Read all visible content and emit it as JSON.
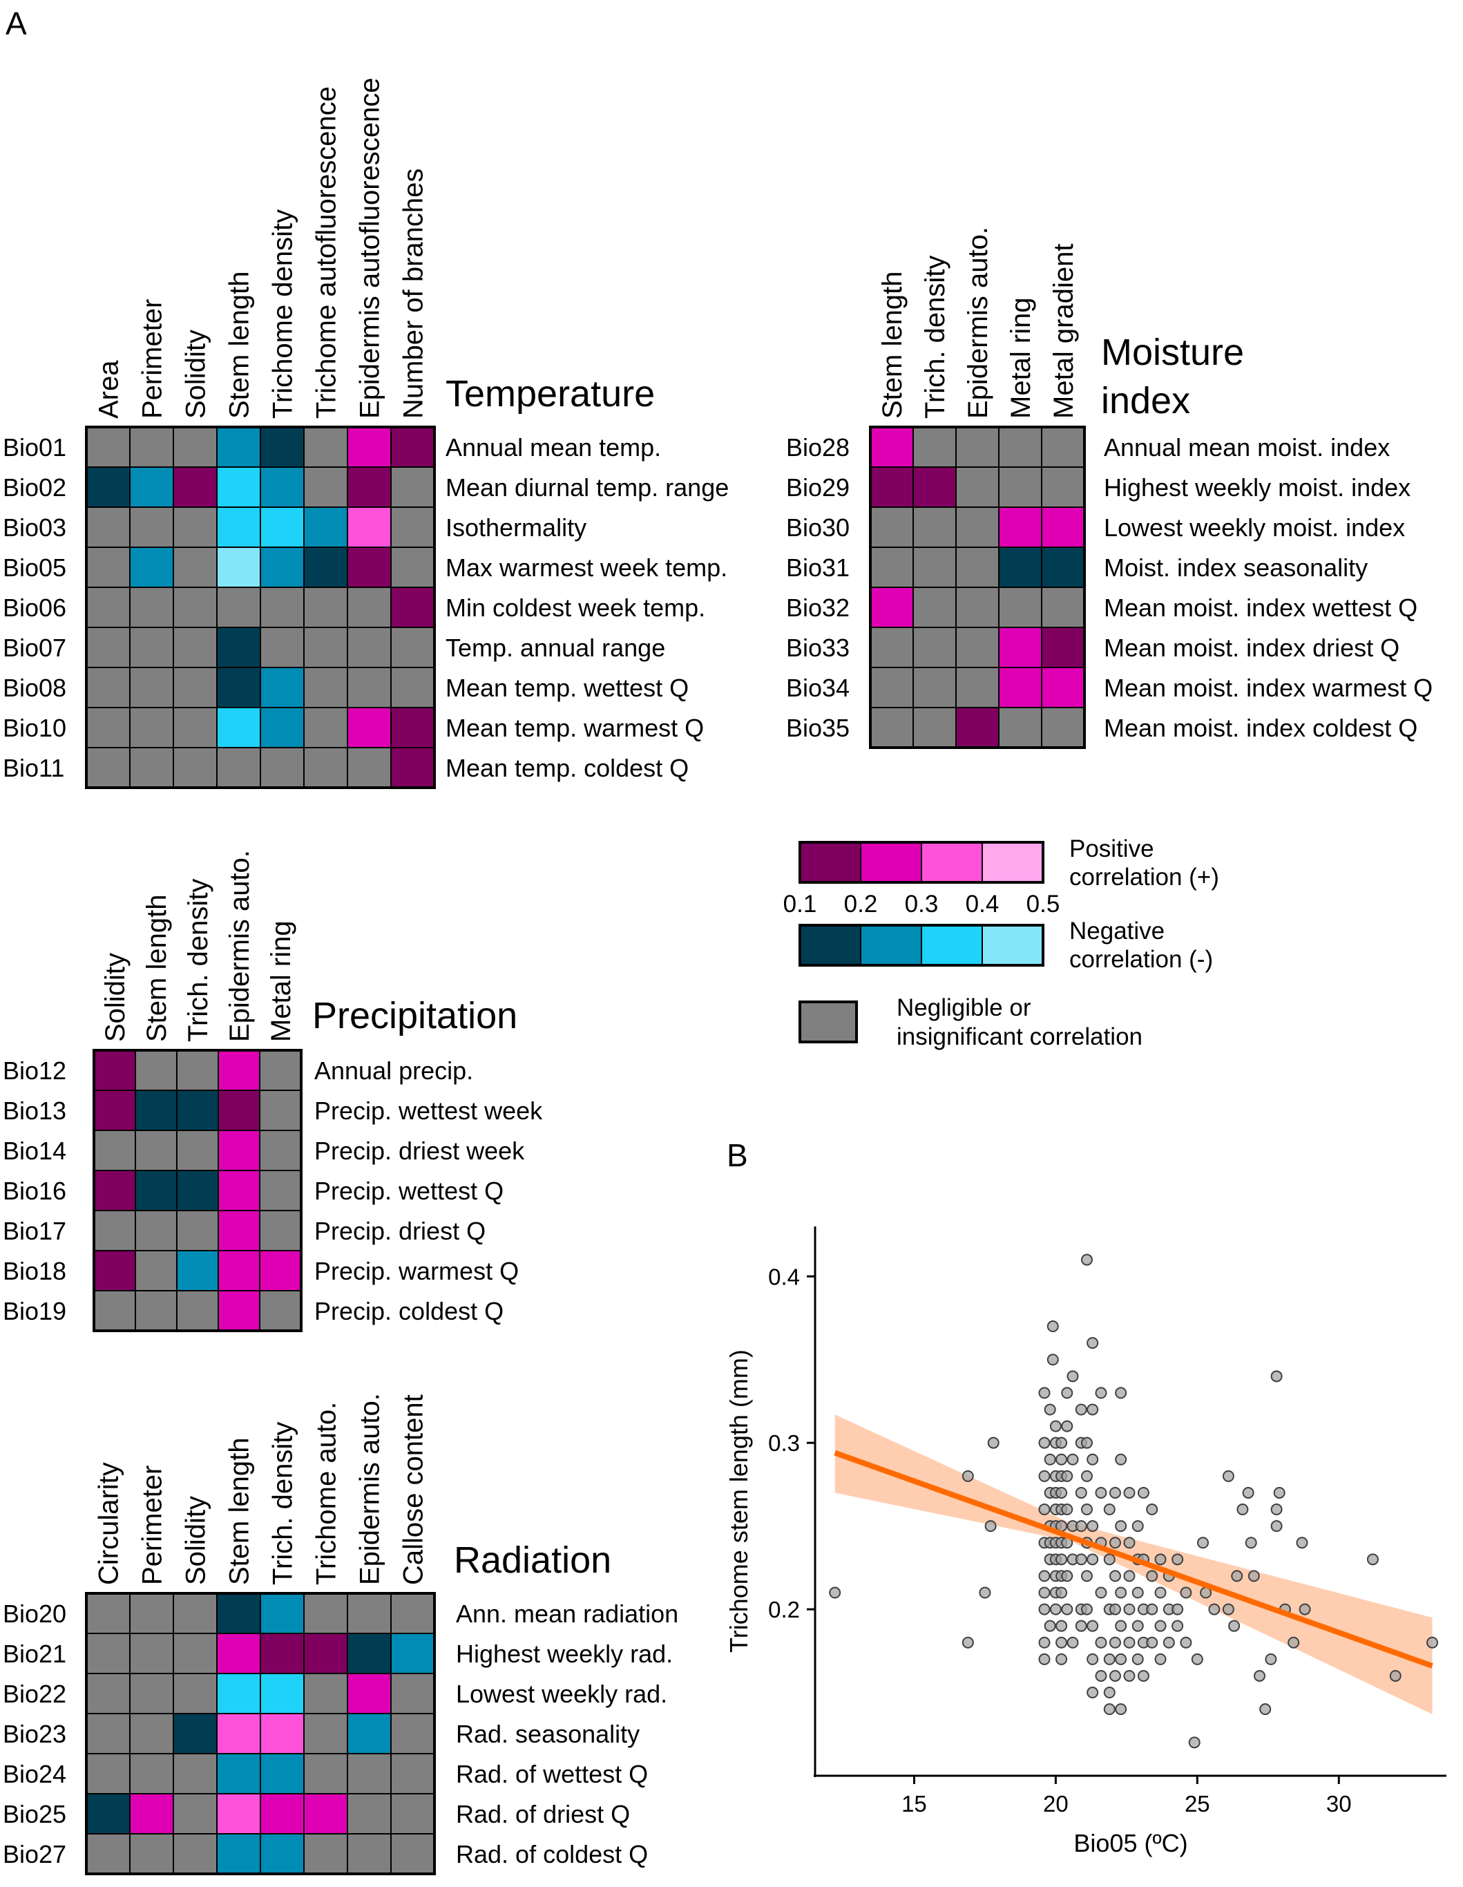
{
  "panels": {
    "a": "A",
    "b": "B"
  },
  "colors": {
    "na": "#808080",
    "p1": "#800060",
    "p2": "#E000B4",
    "p3": "#FF52DA",
    "p4": "#FFA8EE",
    "n1": "#003D52",
    "n2": "#008CB5",
    "n3": "#1ED2FA",
    "n4": "#85E6FA",
    "fit": "#FF6A00",
    "band": "#FFC6A3",
    "point_fill": "#A6A6A6",
    "point_edge": "#404040"
  },
  "heatmaps": [
    {
      "title": [
        "Temperature"
      ],
      "columns": [
        "Area",
        "Perimeter",
        "Solidity",
        "Stem length",
        "Trichome density",
        "Trichome autofluorescence",
        "Epidermis autofluorescence",
        "Number of branches"
      ],
      "rows": [
        {
          "code": "Bio01",
          "name": "Annual mean temp.",
          "cells": [
            "na",
            "na",
            "na",
            "n2",
            "n1",
            "na",
            "p2",
            "p1"
          ]
        },
        {
          "code": "Bio02",
          "name": "Mean diurnal temp. range",
          "cells": [
            "n1",
            "n2",
            "p1",
            "n3",
            "n2",
            "na",
            "p1",
            "na"
          ]
        },
        {
          "code": "Bio03",
          "name": "Isothermality",
          "cells": [
            "na",
            "na",
            "na",
            "n3",
            "n3",
            "n2",
            "p3",
            "na"
          ]
        },
        {
          "code": "Bio05",
          "name": "Max warmest week temp.",
          "cells": [
            "na",
            "n2",
            "na",
            "n4",
            "n2",
            "n1",
            "p1",
            "na"
          ]
        },
        {
          "code": "Bio06",
          "name": "Min coldest week temp.",
          "cells": [
            "na",
            "na",
            "na",
            "na",
            "na",
            "na",
            "na",
            "p1"
          ]
        },
        {
          "code": "Bio07",
          "name": "Temp. annual range",
          "cells": [
            "na",
            "na",
            "na",
            "n1",
            "na",
            "na",
            "na",
            "na"
          ]
        },
        {
          "code": "Bio08",
          "name": "Mean temp. wettest Q",
          "cells": [
            "na",
            "na",
            "na",
            "n1",
            "n2",
            "na",
            "na",
            "na"
          ]
        },
        {
          "code": "Bio10",
          "name": "Mean temp. warmest Q",
          "cells": [
            "na",
            "na",
            "na",
            "n3",
            "n2",
            "na",
            "p2",
            "p1"
          ]
        },
        {
          "code": "Bio11",
          "name": "Mean temp. coldest Q",
          "cells": [
            "na",
            "na",
            "na",
            "na",
            "na",
            "na",
            "na",
            "p1"
          ]
        }
      ]
    },
    {
      "title": [
        "Moisture",
        "index"
      ],
      "columns": [
        "Stem length",
        "Trich. density",
        "Epidermis auto.",
        "Metal ring",
        "Metal gradient"
      ],
      "rows": [
        {
          "code": "Bio28",
          "name": "Annual mean moist. index",
          "cells": [
            "p2",
            "na",
            "na",
            "na",
            "na"
          ]
        },
        {
          "code": "Bio29",
          "name": "Highest weekly moist. index",
          "cells": [
            "p1",
            "p1",
            "na",
            "na",
            "na"
          ]
        },
        {
          "code": "Bio30",
          "name": "Lowest weekly moist. index",
          "cells": [
            "na",
            "na",
            "na",
            "p2",
            "p2"
          ]
        },
        {
          "code": "Bio31",
          "name": "Moist. index seasonality",
          "cells": [
            "na",
            "na",
            "na",
            "n1",
            "n1"
          ]
        },
        {
          "code": "Bio32",
          "name": "Mean moist. index wettest Q",
          "cells": [
            "p2",
            "na",
            "na",
            "na",
            "na"
          ]
        },
        {
          "code": "Bio33",
          "name": "Mean moist. index driest Q",
          "cells": [
            "na",
            "na",
            "na",
            "p2",
            "p1"
          ]
        },
        {
          "code": "Bio34",
          "name": "Mean moist. index warmest Q",
          "cells": [
            "na",
            "na",
            "na",
            "p2",
            "p2"
          ]
        },
        {
          "code": "Bio35",
          "name": "Mean moist. index coldest Q",
          "cells": [
            "na",
            "na",
            "p1",
            "na",
            "na"
          ]
        }
      ]
    },
    {
      "title": [
        "Precipitation"
      ],
      "columns": [
        "Solidity",
        "Stem length",
        "Trich. density",
        "Epidermis auto.",
        "Metal ring"
      ],
      "rows": [
        {
          "code": "Bio12",
          "name": "Annual precip.",
          "cells": [
            "p1",
            "na",
            "na",
            "p2",
            "na"
          ]
        },
        {
          "code": "Bio13",
          "name": "Precip. wettest week",
          "cells": [
            "p1",
            "n1",
            "n1",
            "p1",
            "na"
          ]
        },
        {
          "code": "Bio14",
          "name": "Precip. driest week",
          "cells": [
            "na",
            "na",
            "na",
            "p2",
            "na"
          ]
        },
        {
          "code": "Bio16",
          "name": "Precip. wettest Q",
          "cells": [
            "p1",
            "n1",
            "n1",
            "p2",
            "na"
          ]
        },
        {
          "code": "Bio17",
          "name": "Precip. driest Q",
          "cells": [
            "na",
            "na",
            "na",
            "p2",
            "na"
          ]
        },
        {
          "code": "Bio18",
          "name": "Precip. warmest Q",
          "cells": [
            "p1",
            "na",
            "n2",
            "p2",
            "p2"
          ]
        },
        {
          "code": "Bio19",
          "name": "Precip. coldest Q",
          "cells": [
            "na",
            "na",
            "na",
            "p2",
            "na"
          ]
        }
      ]
    },
    {
      "title": [
        "Radiation"
      ],
      "columns": [
        "Circularity",
        "Perimeter",
        "Solidity",
        "Stem length",
        "Trich. density",
        "Trichome auto.",
        "Epidermis auto.",
        "Callose content"
      ],
      "rows": [
        {
          "code": "Bio20",
          "name": "Ann. mean radiation",
          "cells": [
            "na",
            "na",
            "na",
            "n1",
            "n2",
            "na",
            "na",
            "na"
          ]
        },
        {
          "code": "Bio21",
          "name": "Highest weekly rad.",
          "cells": [
            "na",
            "na",
            "na",
            "p2",
            "p1",
            "p1",
            "n1",
            "n2"
          ]
        },
        {
          "code": "Bio22",
          "name": "Lowest weekly rad.",
          "cells": [
            "na",
            "na",
            "na",
            "n3",
            "n3",
            "na",
            "p2",
            "na"
          ]
        },
        {
          "code": "Bio23",
          "name": "Rad. seasonality",
          "cells": [
            "na",
            "na",
            "n1",
            "p3",
            "p3",
            "na",
            "n2",
            "na"
          ]
        },
        {
          "code": "Bio24",
          "name": "Rad. of wettest Q",
          "cells": [
            "na",
            "na",
            "na",
            "n2",
            "n2",
            "na",
            "na",
            "na"
          ]
        },
        {
          "code": "Bio25",
          "name": "Rad. of driest Q",
          "cells": [
            "n1",
            "p2",
            "na",
            "p3",
            "p2",
            "p2",
            "na",
            "na"
          ]
        },
        {
          "code": "Bio27",
          "name": "Rad. of coldest Q",
          "cells": [
            "na",
            "na",
            "na",
            "n2",
            "n2",
            "na",
            "na",
            "na"
          ]
        }
      ]
    }
  ],
  "legend": {
    "positive_label": [
      "Positive",
      "correlation (+)"
    ],
    "negative_label": [
      "Negative",
      "correlation (-)"
    ],
    "negligible_label": [
      "Negligible or",
      "insignificant correlation"
    ],
    "ticks": [
      "0.1",
      "0.2",
      "0.3",
      "0.4",
      "0.5"
    ]
  },
  "chart_data": {
    "type": "scatter",
    "xlabel": "Bio05 (ºC)",
    "ylabel": "Trichome stem length (mm)",
    "xlim": [
      11.5,
      33.8
    ],
    "ylim": [
      0.1,
      0.43
    ],
    "xticks": [
      15,
      20,
      25,
      30
    ],
    "yticks": [
      0.2,
      0.3,
      0.4
    ],
    "fit": {
      "x": [
        12.2,
        33.3
      ],
      "y": [
        0.294,
        0.166
      ]
    },
    "band": {
      "upper": [
        [
          12.2,
          0.317
        ],
        [
          20.5,
          0.252
        ],
        [
          33.3,
          0.195
        ]
      ],
      "lower": [
        [
          33.3,
          0.137
        ],
        [
          20.5,
          0.241
        ],
        [
          12.2,
          0.27
        ]
      ]
    },
    "points": [
      [
        12.2,
        0.21
      ],
      [
        16.9,
        0.28
      ],
      [
        16.9,
        0.18
      ],
      [
        17.5,
        0.21
      ],
      [
        17.7,
        0.25
      ],
      [
        17.8,
        0.3
      ],
      [
        19.6,
        0.33
      ],
      [
        19.6,
        0.3
      ],
      [
        19.6,
        0.28
      ],
      [
        19.6,
        0.26
      ],
      [
        19.6,
        0.24
      ],
      [
        19.6,
        0.22
      ],
      [
        19.6,
        0.21
      ],
      [
        19.6,
        0.2
      ],
      [
        19.6,
        0.18
      ],
      [
        19.6,
        0.17
      ],
      [
        19.8,
        0.32
      ],
      [
        19.8,
        0.29
      ],
      [
        19.8,
        0.27
      ],
      [
        19.8,
        0.25
      ],
      [
        19.8,
        0.24
      ],
      [
        19.8,
        0.23
      ],
      [
        19.8,
        0.19
      ],
      [
        19.9,
        0.37
      ],
      [
        19.9,
        0.35
      ],
      [
        20.0,
        0.31
      ],
      [
        20.0,
        0.3
      ],
      [
        20.0,
        0.28
      ],
      [
        20.0,
        0.27
      ],
      [
        20.0,
        0.26
      ],
      [
        20.0,
        0.25
      ],
      [
        20.0,
        0.24
      ],
      [
        20.0,
        0.23
      ],
      [
        20.0,
        0.22
      ],
      [
        20.0,
        0.21
      ],
      [
        20.0,
        0.2
      ],
      [
        20.2,
        0.3
      ],
      [
        20.2,
        0.29
      ],
      [
        20.2,
        0.28
      ],
      [
        20.2,
        0.27
      ],
      [
        20.2,
        0.26
      ],
      [
        20.2,
        0.25
      ],
      [
        20.2,
        0.24
      ],
      [
        20.2,
        0.23
      ],
      [
        20.2,
        0.22
      ],
      [
        20.2,
        0.21
      ],
      [
        20.2,
        0.19
      ],
      [
        20.2,
        0.18
      ],
      [
        20.2,
        0.17
      ],
      [
        20.4,
        0.33
      ],
      [
        20.4,
        0.31
      ],
      [
        20.4,
        0.28
      ],
      [
        20.4,
        0.26
      ],
      [
        20.4,
        0.24
      ],
      [
        20.4,
        0.22
      ],
      [
        20.4,
        0.2
      ],
      [
        20.6,
        0.34
      ],
      [
        20.6,
        0.29
      ],
      [
        20.6,
        0.25
      ],
      [
        20.6,
        0.23
      ],
      [
        20.6,
        0.18
      ],
      [
        20.9,
        0.32
      ],
      [
        20.9,
        0.3
      ],
      [
        20.9,
        0.27
      ],
      [
        20.9,
        0.25
      ],
      [
        20.9,
        0.23
      ],
      [
        20.9,
        0.2
      ],
      [
        20.9,
        0.19
      ],
      [
        21.1,
        0.41
      ],
      [
        21.1,
        0.3
      ],
      [
        21.1,
        0.28
      ],
      [
        21.1,
        0.26
      ],
      [
        21.1,
        0.24
      ],
      [
        21.1,
        0.22
      ],
      [
        21.1,
        0.2
      ],
      [
        21.3,
        0.36
      ],
      [
        21.3,
        0.32
      ],
      [
        21.3,
        0.29
      ],
      [
        21.3,
        0.25
      ],
      [
        21.3,
        0.23
      ],
      [
        21.3,
        0.19
      ],
      [
        21.3,
        0.17
      ],
      [
        21.3,
        0.15
      ],
      [
        21.6,
        0.33
      ],
      [
        21.6,
        0.27
      ],
      [
        21.6,
        0.24
      ],
      [
        21.6,
        0.21
      ],
      [
        21.6,
        0.18
      ],
      [
        21.6,
        0.16
      ],
      [
        21.9,
        0.26
      ],
      [
        21.9,
        0.23
      ],
      [
        21.9,
        0.2
      ],
      [
        21.9,
        0.17
      ],
      [
        21.9,
        0.15
      ],
      [
        21.9,
        0.14
      ],
      [
        22.1,
        0.27
      ],
      [
        22.1,
        0.24
      ],
      [
        22.1,
        0.22
      ],
      [
        22.1,
        0.2
      ],
      [
        22.1,
        0.18
      ],
      [
        22.1,
        0.16
      ],
      [
        22.3,
        0.33
      ],
      [
        22.3,
        0.29
      ],
      [
        22.3,
        0.25
      ],
      [
        22.3,
        0.21
      ],
      [
        22.3,
        0.19
      ],
      [
        22.3,
        0.17
      ],
      [
        22.3,
        0.14
      ],
      [
        22.6,
        0.27
      ],
      [
        22.6,
        0.24
      ],
      [
        22.6,
        0.22
      ],
      [
        22.6,
        0.2
      ],
      [
        22.6,
        0.18
      ],
      [
        22.6,
        0.16
      ],
      [
        22.9,
        0.25
      ],
      [
        22.9,
        0.23
      ],
      [
        22.9,
        0.21
      ],
      [
        22.9,
        0.19
      ],
      [
        22.9,
        0.17
      ],
      [
        23.1,
        0.27
      ],
      [
        23.1,
        0.23
      ],
      [
        23.1,
        0.2
      ],
      [
        23.1,
        0.18
      ],
      [
        23.1,
        0.16
      ],
      [
        23.4,
        0.26
      ],
      [
        23.4,
        0.22
      ],
      [
        23.4,
        0.2
      ],
      [
        23.4,
        0.18
      ],
      [
        23.7,
        0.23
      ],
      [
        23.7,
        0.21
      ],
      [
        23.7,
        0.19
      ],
      [
        23.7,
        0.17
      ],
      [
        24.0,
        0.22
      ],
      [
        24.0,
        0.2
      ],
      [
        24.0,
        0.18
      ],
      [
        24.3,
        0.23
      ],
      [
        24.3,
        0.2
      ],
      [
        24.3,
        0.19
      ],
      [
        24.6,
        0.21
      ],
      [
        24.6,
        0.18
      ],
      [
        24.9,
        0.12
      ],
      [
        25.0,
        0.17
      ],
      [
        25.2,
        0.24
      ],
      [
        25.3,
        0.21
      ],
      [
        25.6,
        0.2
      ],
      [
        26.1,
        0.2
      ],
      [
        26.1,
        0.28
      ],
      [
        26.3,
        0.19
      ],
      [
        26.4,
        0.22
      ],
      [
        26.6,
        0.26
      ],
      [
        26.8,
        0.27
      ],
      [
        26.9,
        0.24
      ],
      [
        27.0,
        0.22
      ],
      [
        27.2,
        0.16
      ],
      [
        27.4,
        0.14
      ],
      [
        27.6,
        0.17
      ],
      [
        27.8,
        0.34
      ],
      [
        27.8,
        0.26
      ],
      [
        27.8,
        0.25
      ],
      [
        27.9,
        0.27
      ],
      [
        28.1,
        0.2
      ],
      [
        28.4,
        0.18
      ],
      [
        28.7,
        0.24
      ],
      [
        28.8,
        0.2
      ],
      [
        31.2,
        0.23
      ],
      [
        32.0,
        0.16
      ],
      [
        33.3,
        0.18
      ]
    ]
  }
}
